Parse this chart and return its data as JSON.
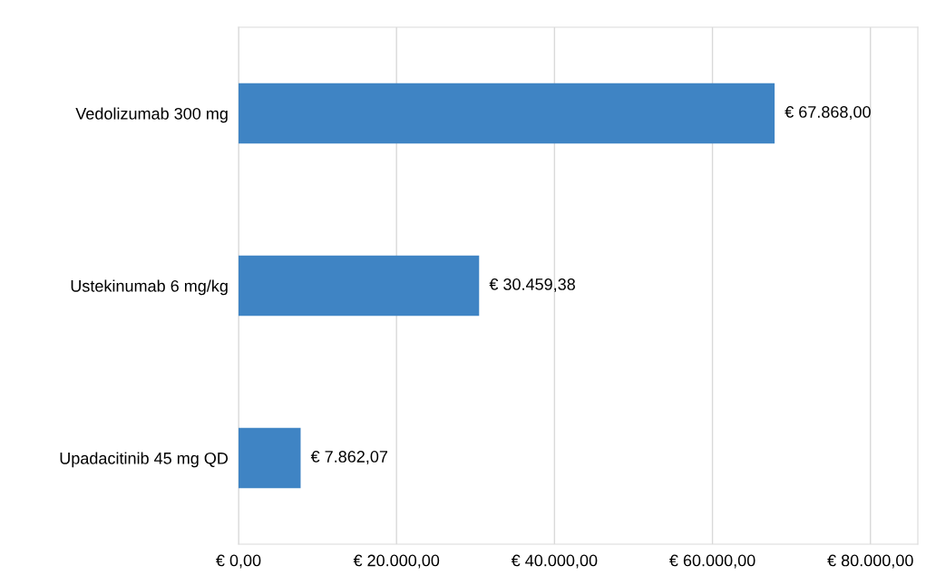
{
  "chart_data": {
    "type": "bar",
    "orientation": "horizontal",
    "categories": [
      "Vedolizumab 300 mg",
      "Ustekinumab 6 mg/kg",
      "Upadacitinib 45 mg QD"
    ],
    "values": [
      67868.0,
      30459.38,
      7862.07
    ],
    "value_labels": [
      "€ 67.868,00",
      "€ 30.459,38",
      "€ 7.862,07"
    ],
    "color": "#3f84c4",
    "xlim": [
      0,
      86000
    ],
    "xticks": [
      {
        "value": 0,
        "label": "€ 0,00"
      },
      {
        "value": 20000,
        "label": "€ 20.000,00"
      },
      {
        "value": 40000,
        "label": "€ 40.000,00"
      },
      {
        "value": 60000,
        "label": "€ 60.000,00"
      },
      {
        "value": 80000,
        "label": "€ 80.000,00"
      }
    ],
    "grid": "x"
  }
}
